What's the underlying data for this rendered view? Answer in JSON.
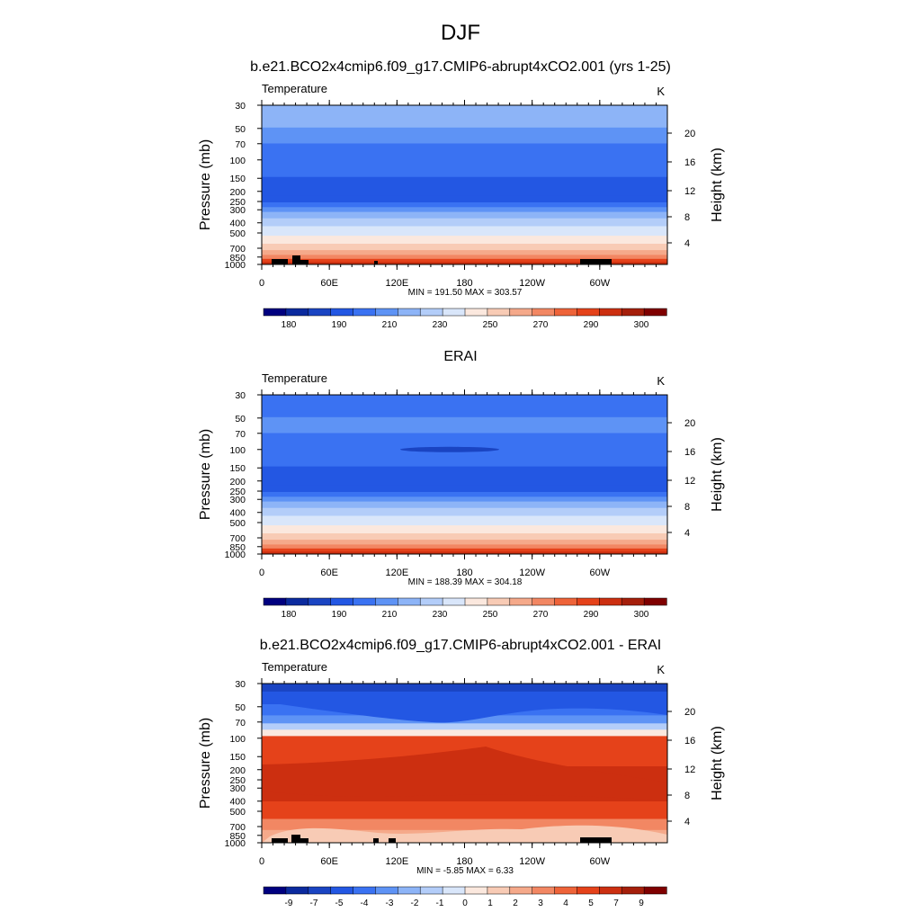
{
  "figure_title": "DJF",
  "colors": {
    "temp_scale": [
      "#00007f",
      "#0b2a9e",
      "#1a44c2",
      "#2357e3",
      "#3a72f2",
      "#5e93f5",
      "#8db4f7",
      "#b3cdf9",
      "#d9e6fa",
      "#fbe8de",
      "#f8cbb5",
      "#f5a98a",
      "#f28763",
      "#ee6339",
      "#e5421a",
      "#cc2f10",
      "#a51f0b",
      "#7f0000"
    ],
    "diff_scale": [
      "#00007f",
      "#0b2a9e",
      "#1a44c2",
      "#2357e3",
      "#3a72f2",
      "#5e93f5",
      "#8db4f7",
      "#b3cdf9",
      "#d9e6fa",
      "#fbe8de",
      "#f8cbb5",
      "#f5a98a",
      "#f28763",
      "#ee6339",
      "#e5421a",
      "#cc2f10",
      "#a51f0b",
      "#7f0000"
    ]
  },
  "chart_data": [
    {
      "type": "heatmap",
      "panel_title": "b.e21.BCO2x4cmip6.f09_g17.CMIP6-abrupt4xCO2.001 (yrs 1-25)",
      "variable": "Temperature",
      "units": "K",
      "ylabel": "Pressure (mb)",
      "ylabel_right": "Height (km)",
      "xticks": [
        "0",
        "60E",
        "120E",
        "180",
        "120W",
        "60W"
      ],
      "xlim": [
        0,
        360
      ],
      "yticks": [
        "30",
        "50",
        "70",
        "100",
        "150",
        "200",
        "250",
        "300",
        "400",
        "500",
        "700",
        "850",
        "1000"
      ],
      "ylim": [
        30,
        1000
      ],
      "right_ticks": [
        "20",
        "16",
        "12",
        "8",
        "4"
      ],
      "stats": "MIN = 191.50  MAX = 303.57",
      "colorbar_labels": [
        "180",
        "190",
        "210",
        "230",
        "250",
        "270",
        "290",
        "300"
      ],
      "bands": [
        6,
        5,
        4,
        4,
        3,
        3,
        3,
        4,
        5,
        6,
        7,
        8,
        9,
        10,
        11,
        12,
        14,
        15
      ],
      "topography": true
    },
    {
      "type": "heatmap",
      "panel_title": "ERAI",
      "variable": "Temperature",
      "units": "K",
      "ylabel": "Pressure (mb)",
      "ylabel_right": "Height (km)",
      "xticks": [
        "0",
        "60E",
        "120E",
        "180",
        "120W",
        "60W"
      ],
      "xlim": [
        0,
        360
      ],
      "yticks": [
        "30",
        "50",
        "70",
        "100",
        "150",
        "200",
        "250",
        "300",
        "400",
        "500",
        "700",
        "850",
        "1000"
      ],
      "ylim": [
        30,
        1000
      ],
      "right_ticks": [
        "20",
        "16",
        "12",
        "8",
        "4"
      ],
      "stats": "MIN = 188.39  MAX = 304.18",
      "colorbar_labels": [
        "180",
        "190",
        "210",
        "230",
        "250",
        "270",
        "290",
        "300"
      ],
      "bands": [
        4,
        5,
        4,
        4,
        3,
        3,
        3,
        4,
        5,
        6,
        7,
        8,
        9,
        10,
        11,
        12,
        14,
        15
      ],
      "topography": false
    },
    {
      "type": "heatmap",
      "panel_title": "b.e21.BCO2x4cmip6.f09_g17.CMIP6-abrupt4xCO2.001 - ERAI",
      "variable": "Temperature",
      "units": "K",
      "ylabel": "Pressure (mb)",
      "ylabel_right": "Height (km)",
      "xticks": [
        "0",
        "60E",
        "120E",
        "180",
        "120W",
        "60W"
      ],
      "xlim": [
        0,
        360
      ],
      "yticks": [
        "30",
        "50",
        "70",
        "100",
        "150",
        "200",
        "250",
        "300",
        "400",
        "500",
        "700",
        "850",
        "1000"
      ],
      "ylim": [
        30,
        1000
      ],
      "right_ticks": [
        "20",
        "16",
        "12",
        "8",
        "4"
      ],
      "stats": "MIN = -5.85  MAX =  6.33",
      "colorbar_labels": [
        "-9",
        "-7",
        "-5",
        "-4",
        "-3",
        "-2",
        "-1",
        "0",
        "1",
        "2",
        "3",
        "4",
        "5",
        "7",
        "9"
      ],
      "bands": [
        3,
        4,
        5,
        7,
        9,
        12,
        14,
        15,
        14,
        13,
        12,
        11
      ],
      "topography": true
    }
  ]
}
